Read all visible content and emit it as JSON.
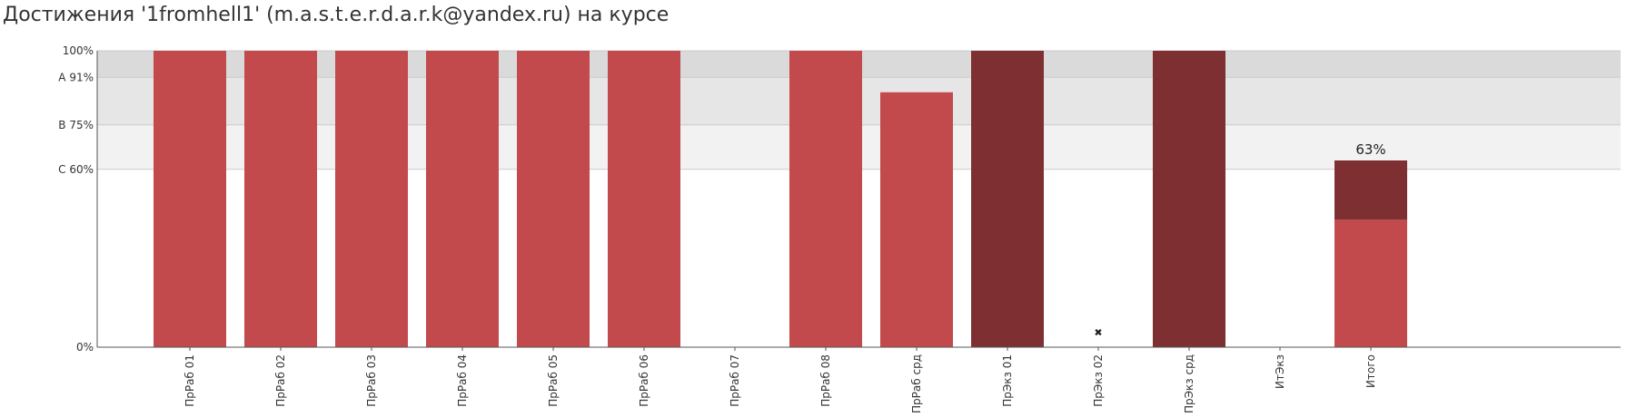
{
  "page": {
    "title": "Достижения '1fromhell1' (m.a.s.t.e.r.d.a.r.k@yandex.ru) на курсе"
  },
  "chart_data": {
    "type": "bar",
    "stacked": true,
    "title": "Достижения '1fromhell1' (m.a.s.t.e.r.d.a.r.k@yandex.ru) на курсе",
    "xlabel": "",
    "ylabel": "",
    "ylim": [
      0,
      100
    ],
    "grid": true,
    "yticks": [
      {
        "value": 0,
        "label": "0%"
      },
      {
        "value": 60,
        "label": "C 60%"
      },
      {
        "value": 75,
        "label": "B 75%"
      },
      {
        "value": 91,
        "label": "A 91%"
      },
      {
        "value": 100,
        "label": "100%"
      }
    ],
    "bands": [
      {
        "from": 60,
        "to": 75,
        "color": "#f2f2f2"
      },
      {
        "from": 75,
        "to": 91,
        "color": "#e6e6e6"
      },
      {
        "from": 91,
        "to": 100,
        "color": "#dadada"
      }
    ],
    "categories": [
      "ПрРаб 01",
      "ПрРаб 02",
      "ПрРаб 03",
      "ПрРаб 04",
      "ПрРаб 05",
      "ПрРаб 06",
      "ПрРаб 07",
      "ПрРаб 08",
      "ПрРаб срд",
      "ПрЭкз 01",
      "ПрЭкз 02",
      "ПрЭкз срд",
      "ИтЭкз",
      "Итого"
    ],
    "series": [
      {
        "color": "#c24a4c",
        "values": [
          100,
          100,
          100,
          100,
          100,
          100,
          0,
          100,
          86,
          0,
          0,
          0,
          0,
          43
        ]
      },
      {
        "color": "#7d2f31",
        "values": [
          0,
          0,
          0,
          0,
          0,
          0,
          0,
          0,
          0,
          100,
          0,
          100,
          0,
          20
        ]
      }
    ],
    "markers": [
      {
        "category": "ПрЭкз 02",
        "symbol": "✖",
        "value": 5
      }
    ],
    "data_labels": [
      {
        "category": "Итого",
        "text": "63%"
      }
    ]
  }
}
